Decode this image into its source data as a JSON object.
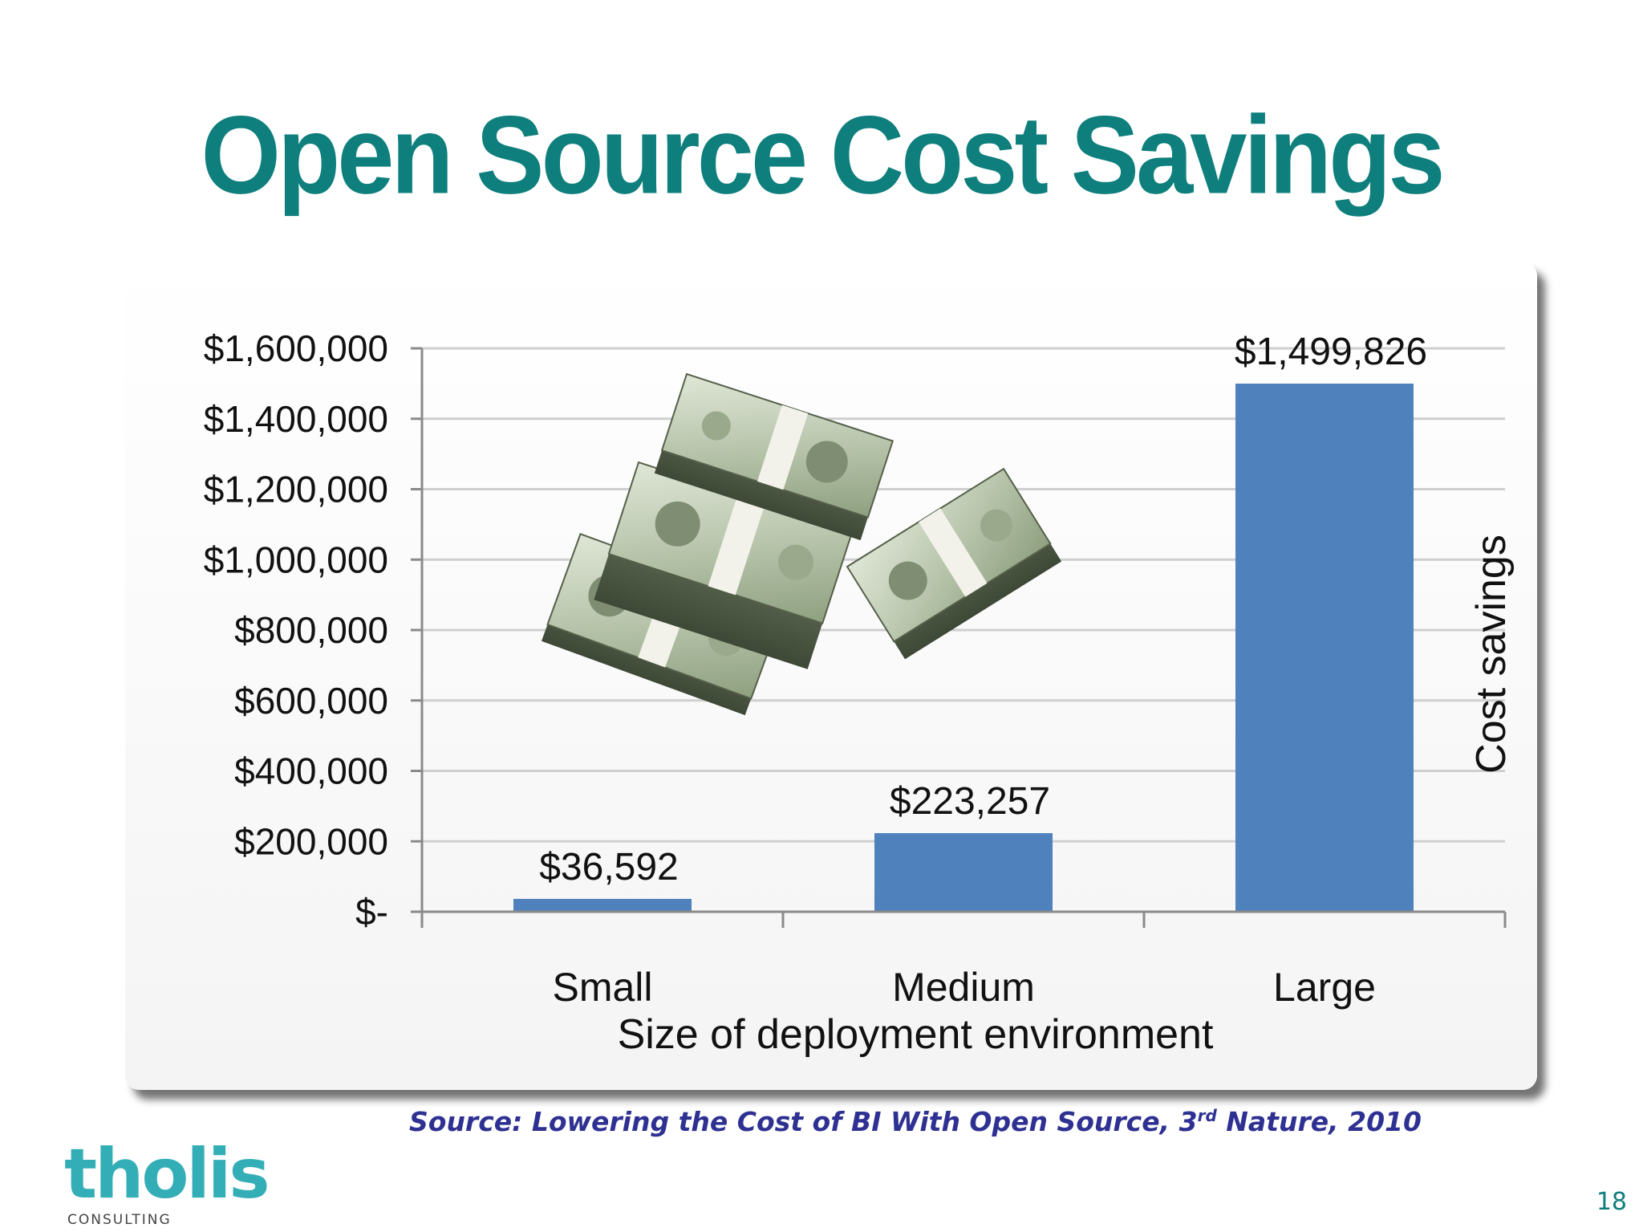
{
  "slide": {
    "title": "Open Source Cost Savings",
    "page_number": "18",
    "source": {
      "prefix": "Source: Lowering the Cost of BI With Open Source, 3",
      "superscript": "rd",
      "suffix": " Nature, 2010"
    },
    "logo": {
      "word": "tholis",
      "sub": "CONSULTING"
    },
    "illustration_icon": "money-stacks-icon",
    "colors": {
      "title": "#0e7f7c",
      "bar": "#4f81bd",
      "source": "#2e3192",
      "logo": "#34aeb6"
    }
  },
  "chart_data": {
    "type": "bar",
    "categories": [
      "Small",
      "Medium",
      "Large"
    ],
    "values": [
      36592,
      223257,
      1499826
    ],
    "data_labels": [
      "$36,592",
      "$223,257",
      "$1,499,826"
    ],
    "xlabel": "Size of deployment environment",
    "ylabel": "Cost  savings",
    "ylim": [
      0,
      1600000
    ],
    "yticks": [
      0,
      200000,
      400000,
      600000,
      800000,
      1000000,
      1200000,
      1400000,
      1600000
    ],
    "ytick_labels": [
      "$-",
      "$200,000",
      "$400,000",
      "$600,000",
      "$800,000",
      "$1,000,000",
      "$1,200,000",
      "$1,400,000",
      "$1,600,000"
    ],
    "grid": true,
    "legend": "none"
  }
}
